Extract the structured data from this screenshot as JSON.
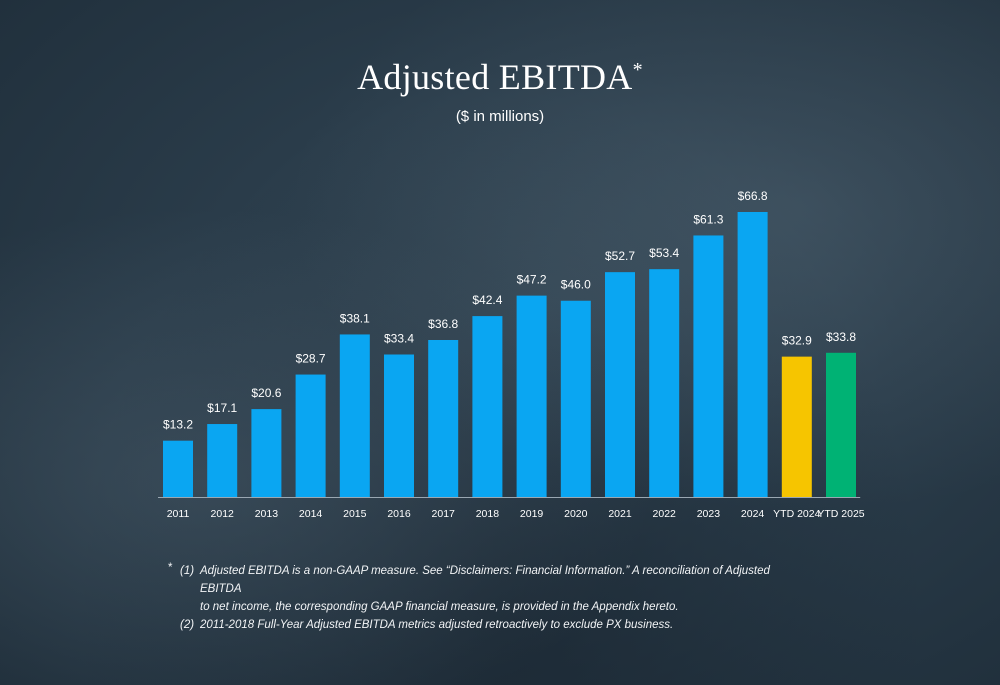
{
  "title": "Adjusted EBITDA",
  "title_mark": "*",
  "subtitle": "($ in millions)",
  "chart_data": {
    "type": "bar",
    "categories": [
      "2011",
      "2012",
      "2013",
      "2014",
      "2015",
      "2016",
      "2017",
      "2018",
      "2019",
      "2020",
      "2021",
      "2022",
      "2023",
      "2024",
      "YTD 2024",
      "YTD 2025"
    ],
    "values": [
      13.2,
      17.1,
      20.6,
      28.7,
      38.1,
      33.4,
      36.8,
      42.4,
      47.2,
      46.0,
      52.7,
      53.4,
      61.3,
      66.8,
      32.9,
      33.8
    ],
    "labels": [
      "$13.2",
      "$17.1",
      "$20.6",
      "$28.7",
      "$38.1",
      "$33.4",
      "$36.8",
      "$42.4",
      "$47.2",
      "$46.0",
      "$52.7",
      "$53.4",
      "$61.3",
      "$66.8",
      "$32.9",
      "$33.8"
    ],
    "colors": [
      "#0aa6f2",
      "#0aa6f2",
      "#0aa6f2",
      "#0aa6f2",
      "#0aa6f2",
      "#0aa6f2",
      "#0aa6f2",
      "#0aa6f2",
      "#0aa6f2",
      "#0aa6f2",
      "#0aa6f2",
      "#0aa6f2",
      "#0aa6f2",
      "#0aa6f2",
      "#f6c500",
      "#00b274"
    ],
    "ylim": [
      0,
      70
    ],
    "grid": false,
    "title": "Adjusted EBITDA",
    "xlabel": "",
    "ylabel": ""
  },
  "footnotes": {
    "star": "*",
    "n1": "(1)",
    "n1_line1": "Adjusted EBITDA is a non-GAAP measure. See “Disclaimers: Financial Information.” A reconciliation of Adjusted EBITDA",
    "n1_line2": "to net income, the corresponding GAAP   financial measure, is provided in the Appendix hereto.",
    "n2": "(2)",
    "n2_text": "2011-2018 Full-Year Adjusted EBITDA metrics adjusted retroactively to exclude PX business."
  }
}
